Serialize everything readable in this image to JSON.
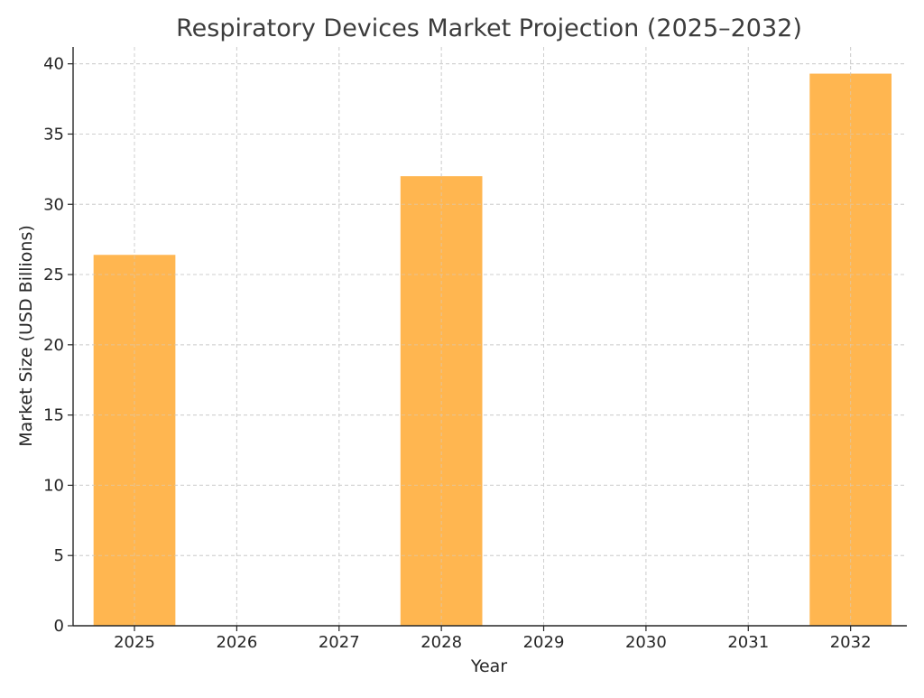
{
  "chart_data": {
    "type": "bar",
    "title": "Respiratory Devices Market Projection (2025–2032)",
    "xlabel": "Year",
    "ylabel": "Market Size (USD Billions)",
    "x": [
      2025,
      2026,
      2027,
      2028,
      2029,
      2030,
      2031,
      2032
    ],
    "x_tick_labels": [
      "2025",
      "2026",
      "2027",
      "2028",
      "2029",
      "2030",
      "2031",
      "2032"
    ],
    "bars": [
      {
        "x": 2025,
        "value": 26.4
      },
      {
        "x": 2028,
        "value": 32.0
      },
      {
        "x": 2032,
        "value": 39.3
      }
    ],
    "xlim": [
      2024.4,
      2032.55
    ],
    "ylim": [
      0,
      41.2
    ],
    "y_ticks": [
      0,
      5,
      10,
      15,
      20,
      25,
      30,
      35,
      40
    ],
    "bar_width": 0.8,
    "bar_color": "#ffb650",
    "grid": true
  }
}
